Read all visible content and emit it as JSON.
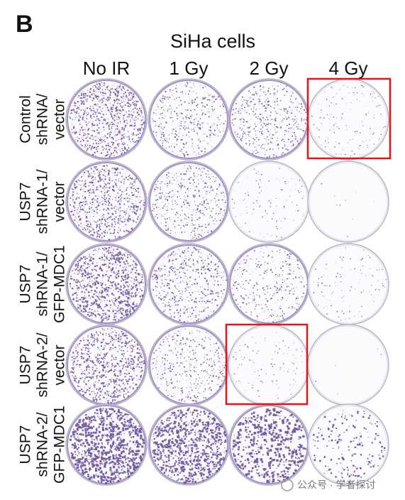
{
  "panel_label": "B",
  "title": "SiHa cells",
  "columns": [
    "No IR",
    "1 Gy",
    "2 Gy",
    "4 Gy"
  ],
  "rows": [
    [
      "Control",
      "shRNA/",
      "vector"
    ],
    [
      "USP7",
      "shRNA-1/",
      "vector"
    ],
    [
      "USP7",
      "shRNA-1/",
      "GFP-MDC1"
    ],
    [
      "USP7",
      "shRNA-2/",
      "vector"
    ],
    [
      "USP7",
      "shRNA-2/",
      "GFP-MDC1"
    ]
  ],
  "watermark": "公众号 · 学者探讨"
}
